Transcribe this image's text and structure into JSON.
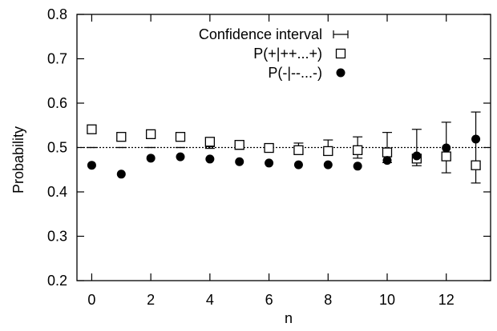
{
  "chart_data": {
    "type": "scatter",
    "title": "",
    "xlabel": "n",
    "ylabel": "Probability",
    "xlim": [
      -0.5,
      13.5
    ],
    "ylim": [
      0.2,
      0.8
    ],
    "xticks": [
      0,
      2,
      4,
      6,
      8,
      10,
      12
    ],
    "xtick_labels": [
      "0",
      "2",
      "4",
      "6",
      "8",
      "10",
      "12"
    ],
    "yticks": [
      0.2,
      0.3,
      0.4,
      0.5,
      0.6,
      0.7,
      0.8
    ],
    "ytick_labels": [
      "0.2",
      "0.3",
      "0.4",
      "0.5",
      "0.6",
      "0.7",
      "0.8"
    ],
    "reference_line": {
      "y": 0.5,
      "style": "dotted"
    },
    "legend_position": "top-center",
    "grid": false,
    "series": [
      {
        "name": "Confidence interval",
        "kind": "errorbar",
        "x": [
          0,
          1,
          2,
          3,
          4,
          5,
          6,
          7,
          8,
          9,
          10,
          11,
          12,
          13
        ],
        "y": [
          0.5,
          0.5,
          0.5,
          0.5,
          0.5,
          0.5,
          0.5,
          0.5,
          0.5,
          0.5,
          0.5,
          0.5,
          0.5,
          0.5
        ],
        "lower": [
          0.5,
          0.5,
          0.5,
          0.5,
          0.498,
          0.496,
          0.493,
          0.49,
          0.483,
          0.476,
          0.466,
          0.459,
          0.443,
          0.42
        ],
        "upper": [
          0.5,
          0.5,
          0.5,
          0.5,
          0.502,
          0.504,
          0.507,
          0.51,
          0.517,
          0.524,
          0.534,
          0.541,
          0.557,
          0.58
        ]
      },
      {
        "name": "P(+|++...+)",
        "marker": "open-square",
        "x": [
          0,
          1,
          2,
          3,
          4,
          5,
          6,
          7,
          8,
          9,
          10,
          11,
          12,
          13
        ],
        "y": [
          0.541,
          0.524,
          0.53,
          0.524,
          0.513,
          0.506,
          0.499,
          0.494,
          0.492,
          0.494,
          0.489,
          0.475,
          0.48,
          0.46
        ]
      },
      {
        "name": "P(-|--...-)",
        "marker": "filled-circle",
        "x": [
          0,
          1,
          2,
          3,
          4,
          5,
          6,
          7,
          8,
          9,
          10,
          11,
          12,
          13
        ],
        "y": [
          0.46,
          0.44,
          0.476,
          0.479,
          0.474,
          0.468,
          0.465,
          0.461,
          0.461,
          0.458,
          0.471,
          0.481,
          0.499,
          0.519
        ]
      }
    ]
  }
}
